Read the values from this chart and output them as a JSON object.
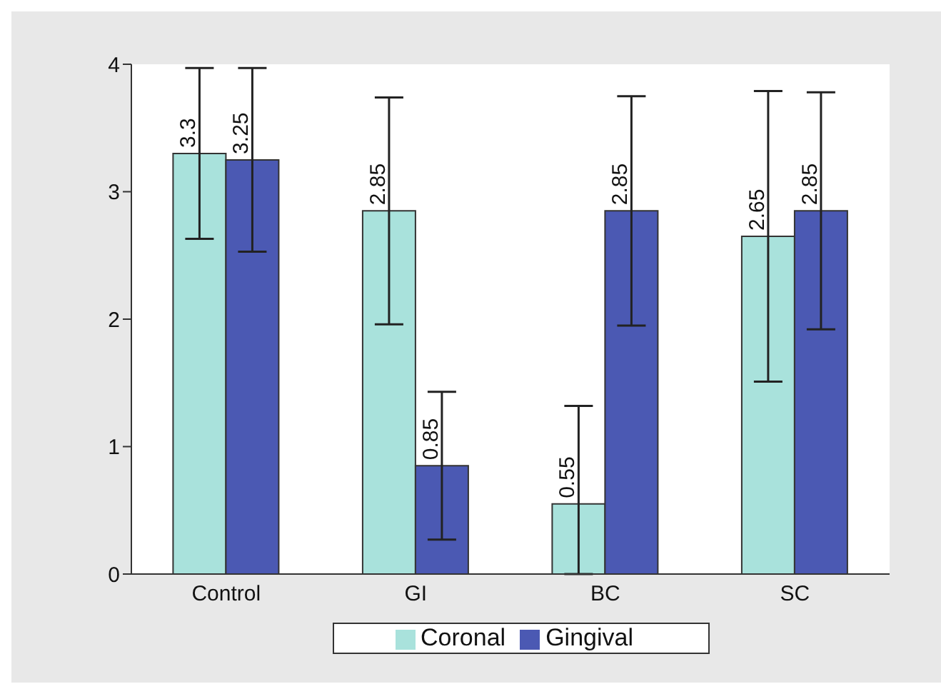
{
  "chart_data": {
    "type": "bar",
    "categories": [
      "Control",
      "GI",
      "BC",
      "SC"
    ],
    "series": [
      {
        "name": "Coronal",
        "color": "#a9e2dc",
        "values": [
          3.3,
          2.85,
          0.55,
          2.65
        ],
        "errors": [
          0.67,
          0.89,
          [
            0,
            1.32
          ],
          1.14
        ]
      },
      {
        "name": "Gingival",
        "color": "#4b59b3",
        "values": [
          3.25,
          0.85,
          2.85,
          2.85
        ],
        "errors": [
          0.72,
          0.58,
          0.9,
          0.93
        ]
      }
    ],
    "ylim": [
      0,
      4
    ],
    "yticks": [
      0,
      1,
      2,
      3,
      4
    ],
    "data_labels": true,
    "legend": "bottom",
    "grid": false
  }
}
